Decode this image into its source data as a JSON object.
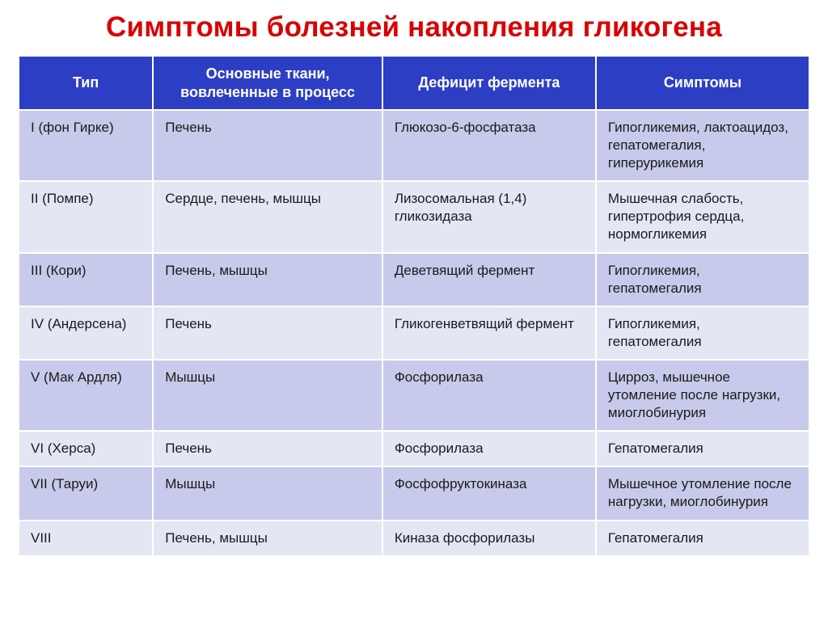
{
  "title": "Симптомы болезней накопления гликогена",
  "title_color": "#d90000",
  "header_bg": "#2c3fc4",
  "header_fg": "#ffffff",
  "row_colors": [
    "#c7caea",
    "#e4e6f4"
  ],
  "border_color": "#ffffff",
  "title_fontsize": 35,
  "header_fontsize": 18,
  "cell_fontsize": 17,
  "columns": [
    "Тип",
    "Основные ткани, вовлеченные в процесс",
    "Дефицит фермента",
    "Симптомы"
  ],
  "column_widths_pct": [
    17,
    29,
    27,
    27
  ],
  "rows": [
    {
      "type": "I (фон Гирке)",
      "tissues": "Печень",
      "enzyme": "Глюкозо-6-фосфатаза",
      "symptoms": "Гипогликемия, лактоацидоз, гепатомегалия, гиперурикемия"
    },
    {
      "type": "II (Помпе)",
      "tissues": "Сердце, печень, мышцы",
      "enzyme": "Лизосомальная (1,4) гликозидаза",
      "symptoms": "Мышечная слабость, гипертрофия сердца, нормогликемия"
    },
    {
      "type": "III (Кори)",
      "tissues": "Печень, мышцы",
      "enzyme": "Деветвящий фермент",
      "symptoms": "Гипогликемия, гепатомегалия"
    },
    {
      "type": "IV (Андерсена)",
      "tissues": "Печень",
      "enzyme": "Гликогенветвящий фермент",
      "symptoms": "Гипогликемия, гепатомегалия"
    },
    {
      "type": "V (Мак Ардля)",
      "tissues": "Мышцы",
      "enzyme": "Фосфорилаза",
      "symptoms": "Цирроз, мышечное утомление после нагрузки, миоглобинурия"
    },
    {
      "type": "VI (Херса)",
      "tissues": "Печень",
      "enzyme": "Фосфорилаза",
      "symptoms": "Гепатомегалия"
    },
    {
      "type": "VII (Таруи)",
      "tissues": "Мышцы",
      "enzyme": "Фосфофруктокиназа",
      "symptoms": "Мышечное утомление после нагрузки, миоглобинурия"
    },
    {
      "type": "VIII",
      "tissues": "Печень, мышцы",
      "enzyme": "Киназа фосфорилазы",
      "symptoms": "Гепатомегалия"
    }
  ]
}
